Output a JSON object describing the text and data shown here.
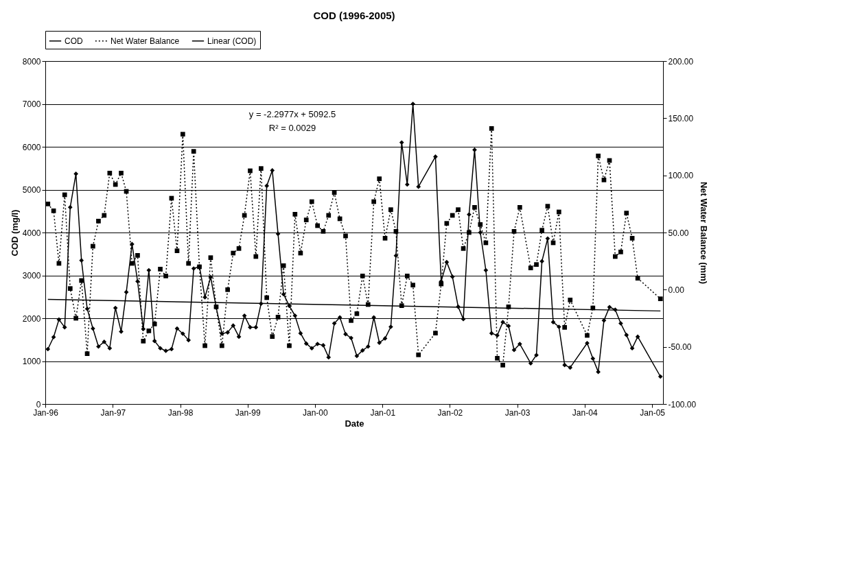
{
  "chart_data": {
    "type": "line",
    "title": "COD (1996-2005)",
    "xlabel": "Date",
    "ylabel": "COD (mg/l)",
    "y2label": "Net Water Balance (mm)",
    "annotations": [
      "y = -2.2977x + 5092.5",
      "R² = 0.0029"
    ],
    "x": [
      "1996-01-15",
      "1996-02-15",
      "1996-03-15",
      "1996-04-15",
      "1996-05-15",
      "1996-06-15",
      "1996-07-15",
      "1996-08-15",
      "1996-09-15",
      "1996-10-15",
      "1996-11-15",
      "1996-12-15",
      "1997-01-15",
      "1997-02-15",
      "1997-03-15",
      "1997-04-15",
      "1997-05-15",
      "1997-06-15",
      "1997-07-15",
      "1997-08-15",
      "1997-09-15",
      "1997-10-15",
      "1997-11-15",
      "1997-12-15",
      "1998-01-15",
      "1998-02-15",
      "1998-03-15",
      "1998-04-15",
      "1998-05-15",
      "1998-06-15",
      "1998-07-15",
      "1998-08-15",
      "1998-09-15",
      "1998-10-15",
      "1998-11-15",
      "1998-12-15",
      "1999-01-15",
      "1999-02-15",
      "1999-03-15",
      "1999-04-15",
      "1999-05-15",
      "1999-06-15",
      "1999-07-15",
      "1999-08-15",
      "1999-09-15",
      "1999-10-15",
      "1999-11-15",
      "1999-12-15",
      "2000-01-15",
      "2000-02-15",
      "2000-03-15",
      "2000-04-15",
      "2000-05-15",
      "2000-06-15",
      "2000-07-15",
      "2000-08-15",
      "2000-09-15",
      "2000-10-15",
      "2000-11-15",
      "2000-12-15",
      "2001-01-15",
      "2001-02-15",
      "2001-03-15",
      "2001-04-15",
      "2001-05-15",
      "2001-06-15",
      "2001-07-15",
      "2001-10-15",
      "2001-11-15",
      "2001-12-15",
      "2002-01-15",
      "2002-02-15",
      "2002-03-15",
      "2002-04-15",
      "2002-05-15",
      "2002-06-15",
      "2002-07-15",
      "2002-08-15",
      "2002-09-15",
      "2002-10-15",
      "2002-11-15",
      "2002-12-15",
      "2003-01-15",
      "2003-03-15",
      "2003-04-15",
      "2003-05-15",
      "2003-06-15",
      "2003-07-15",
      "2003-08-15",
      "2003-09-15",
      "2003-10-15",
      "2004-01-15",
      "2004-02-15",
      "2004-03-15",
      "2004-04-15",
      "2004-05-15",
      "2004-06-15",
      "2004-07-15",
      "2004-08-15",
      "2004-09-15",
      "2004-10-15",
      "2005-02-15"
    ],
    "series": [
      {
        "name": "COD",
        "color": "#000000",
        "marker": "diamond",
        "line_style": "solid",
        "values": [
          1280,
          1560,
          1970,
          1790,
          4590,
          5370,
          3350,
          2220,
          1760,
          1340,
          1450,
          1300,
          2240,
          1690,
          2610,
          3730,
          2860,
          1750,
          3120,
          1470,
          1300,
          1240,
          1280,
          1760,
          1640,
          1490,
          3160,
          3210,
          2490,
          2960,
          2250,
          1640,
          1670,
          1830,
          1570,
          2060,
          1790,
          1790,
          2340,
          5090,
          5450,
          3970,
          2560,
          2290,
          2060,
          1650,
          1410,
          1300,
          1400,
          1370,
          1090,
          1880,
          2020,
          1630,
          1540,
          1120,
          1250,
          1340,
          2020,
          1430,
          1530,
          1800,
          3460,
          6100,
          5120,
          7000,
          5070,
          5770,
          2860,
          3310,
          2970,
          2270,
          1980,
          4420,
          5930,
          4000,
          3120,
          1650,
          1600,
          1910,
          1820,
          1260,
          1400,
          950,
          1140,
          3330,
          3860,
          1910,
          1800,
          910,
          850,
          1420,
          1060,
          750,
          1950,
          2260,
          2200,
          1880,
          1610,
          1300,
          1570,
          640
        ]
      },
      {
        "name": "Net Water Balance",
        "color": "#000000",
        "marker": "square",
        "line_style": "dotted",
        "axis": "y2",
        "values": [
          75,
          69,
          23,
          83,
          1,
          -25,
          8,
          -56,
          38,
          60,
          65,
          102,
          92,
          102,
          86,
          23,
          30,
          -45,
          -36,
          -30,
          18,
          12,
          80,
          34,
          136,
          23,
          121,
          20,
          -49,
          28,
          -15,
          -49,
          0,
          32,
          36,
          65,
          104,
          29,
          106,
          -7,
          -41,
          -24,
          21,
          -49,
          66,
          32,
          61,
          77,
          56,
          51,
          65,
          85,
          62,
          47,
          -27,
          -21,
          12,
          -13,
          77,
          97,
          45,
          70,
          51,
          -14,
          12,
          4,
          -57,
          -38,
          5,
          58,
          65,
          70,
          36,
          50,
          72,
          57,
          41,
          141,
          -60,
          -66,
          -15,
          51,
          72,
          19,
          22,
          52,
          73,
          41,
          68,
          -33,
          -9,
          -40,
          -16,
          117,
          96,
          113,
          29,
          33,
          67,
          45,
          10,
          -8
        ]
      },
      {
        "name": "Linear (COD)",
        "color": "#000000",
        "marker": "none",
        "line_style": "solid",
        "x": [
          "1996-01-15",
          "2005-02-15"
        ],
        "values": [
          2440,
          2170
        ]
      }
    ],
    "xlim": [
      "1996-01-01",
      "2005-03-01"
    ],
    "xticks": [
      {
        "value": "1996-01-01",
        "label": "Jan-96"
      },
      {
        "value": "1997-01-01",
        "label": "Jan-97"
      },
      {
        "value": "1998-01-01",
        "label": "Jan-98"
      },
      {
        "value": "1999-01-01",
        "label": "Jan-99"
      },
      {
        "value": "2000-01-01",
        "label": "Jan-00"
      },
      {
        "value": "2001-01-01",
        "label": "Jan-01"
      },
      {
        "value": "2002-01-01",
        "label": "Jan-02"
      },
      {
        "value": "2003-01-01",
        "label": "Jan-03"
      },
      {
        "value": "2004-01-01",
        "label": "Jan-04"
      },
      {
        "value": "2005-01-01",
        "label": "Jan-05"
      }
    ],
    "ylim": [
      0,
      8000
    ],
    "yticks": [
      0,
      1000,
      2000,
      3000,
      4000,
      5000,
      6000,
      7000,
      8000
    ],
    "y2lim": [
      -100,
      200
    ],
    "y2ticks": [
      {
        "value": -100,
        "label": "-100.00"
      },
      {
        "value": -50,
        "label": "-50.00"
      },
      {
        "value": 0,
        "label": "0.00"
      },
      {
        "value": 50,
        "label": "50.00"
      },
      {
        "value": 100,
        "label": "100.00"
      },
      {
        "value": 150,
        "label": "150.00"
      },
      {
        "value": 200,
        "label": "200.00"
      }
    ],
    "grid": "y",
    "legend": "top"
  }
}
